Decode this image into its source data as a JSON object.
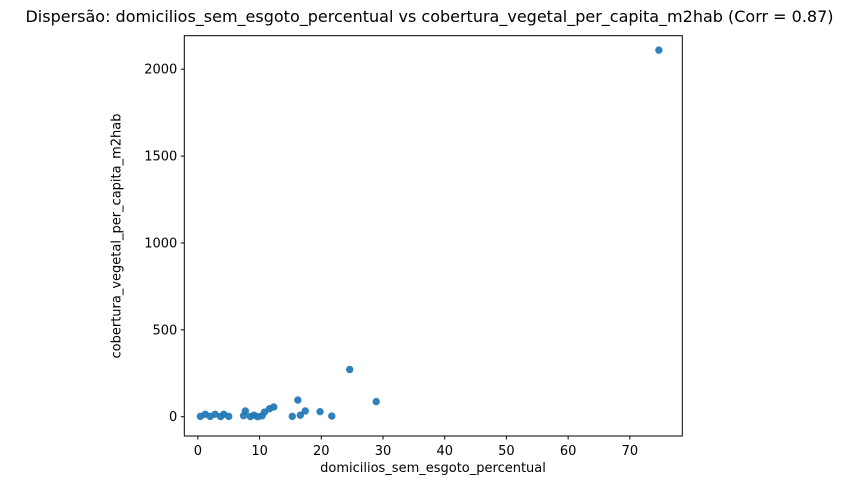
{
  "figure": {
    "background": "#ffffff"
  },
  "chart_data": {
    "type": "scatter",
    "title": "Dispersão: domicilios_sem_esgoto_percentual vs cobertura_vegetal_per_capita_m2hab (Corr = 0.87)",
    "xlabel": "domicilios_sem_esgoto_percentual",
    "ylabel": "cobertura_vegetal_per_capita_m2hab",
    "correlation": 0.87,
    "xlim": [
      -2.2,
      78.5
    ],
    "ylim": [
      -111,
      2193
    ],
    "xticks": [
      0,
      10,
      20,
      30,
      40,
      50,
      60,
      70
    ],
    "yticks": [
      0,
      500,
      1000,
      1500,
      2000
    ],
    "grid": false,
    "legend": false,
    "marker_color": "#1f77b4",
    "axis_color": "#000000",
    "points": [
      [
        0.4,
        2
      ],
      [
        1.2,
        14
      ],
      [
        2.0,
        2
      ],
      [
        2.8,
        14
      ],
      [
        3.7,
        1
      ],
      [
        4.2,
        14
      ],
      [
        5.0,
        2
      ],
      [
        7.4,
        6
      ],
      [
        7.7,
        33
      ],
      [
        8.5,
        1
      ],
      [
        9.1,
        9
      ],
      [
        9.7,
        0
      ],
      [
        10.4,
        5
      ],
      [
        10.8,
        27
      ],
      [
        11.6,
        46
      ],
      [
        12.3,
        56
      ],
      [
        15.3,
        2
      ],
      [
        16.2,
        96
      ],
      [
        16.6,
        9
      ],
      [
        17.4,
        33
      ],
      [
        19.8,
        29
      ],
      [
        21.7,
        4
      ],
      [
        24.6,
        272
      ],
      [
        28.9,
        87
      ],
      [
        74.7,
        2110
      ]
    ]
  }
}
